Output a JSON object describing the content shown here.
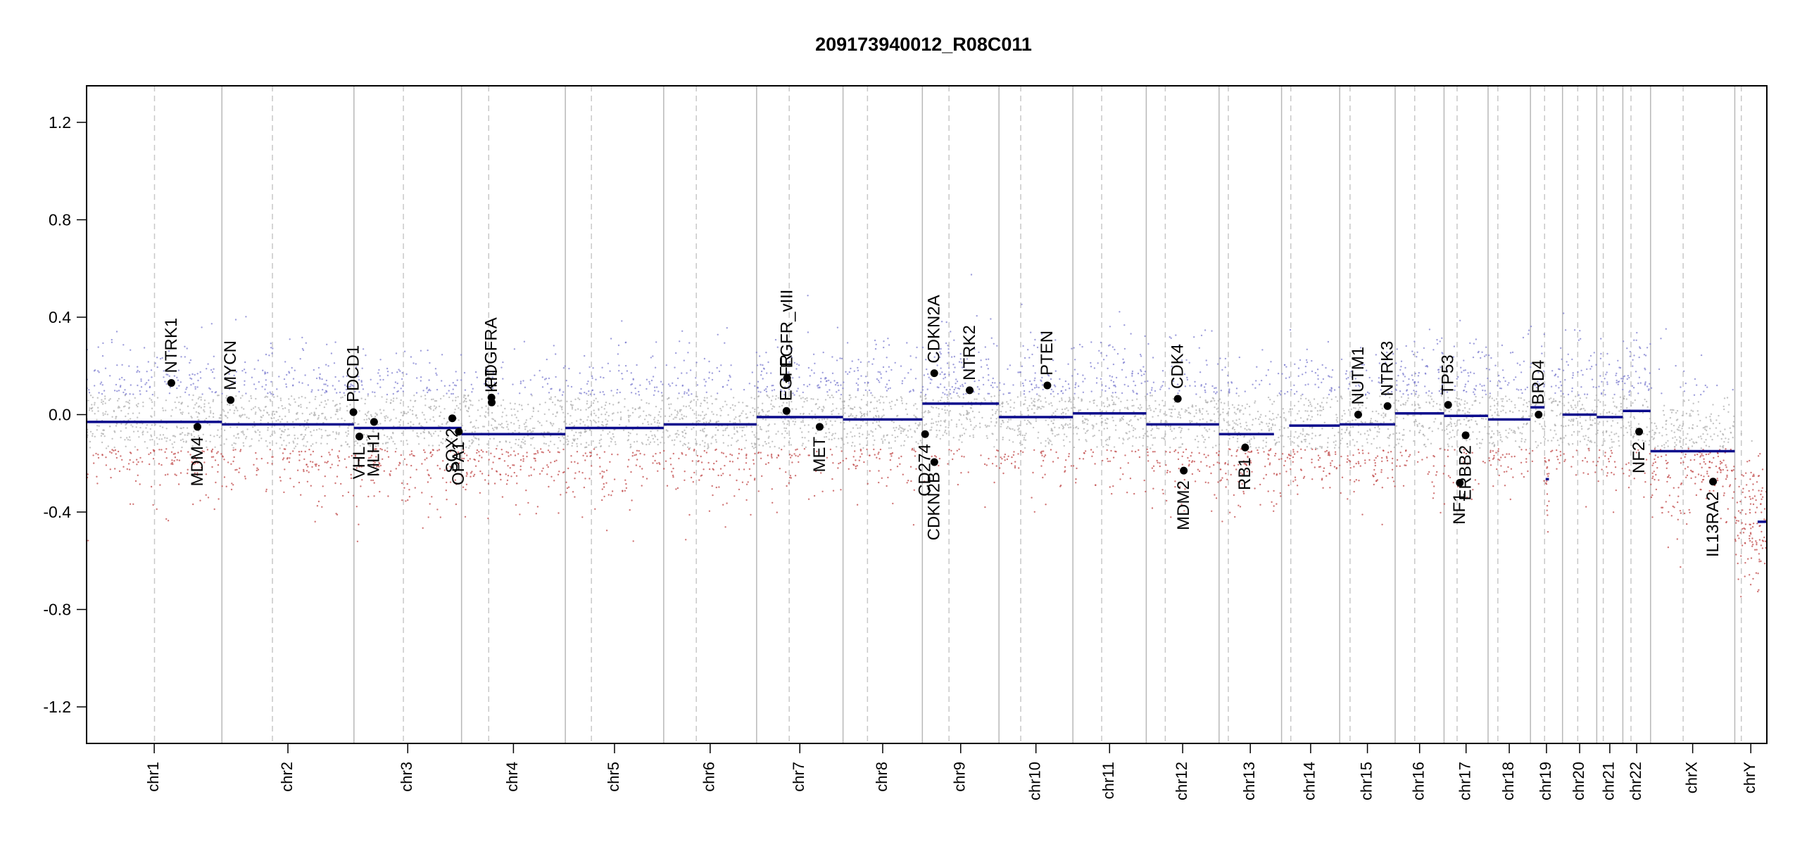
{
  "chart_data": {
    "type": "scatter",
    "title": "209173940012_R08C011",
    "xlabel": "",
    "ylabel": "",
    "ylim": [
      -1.35,
      1.35
    ],
    "yticks": [
      {
        "value": 1.2,
        "label": "1.2"
      },
      {
        "value": 0.8,
        "label": "0.8"
      },
      {
        "value": 0.4,
        "label": "0.4"
      },
      {
        "value": 0.0,
        "label": "0.0"
      },
      {
        "value": -0.4,
        "label": "-0.4"
      },
      {
        "value": -0.8,
        "label": "-0.8"
      },
      {
        "value": -1.2,
        "label": "-1.2"
      }
    ],
    "x_unit": "genome position (Mb)",
    "colors": {
      "segment": "#0a0a8c",
      "gain_points": "#7f7fd0",
      "loss_points": "#c04848",
      "neutral_points": "#b0b0b0",
      "chrom_border": "#b8b8b8",
      "centromere": "#c8c8c8",
      "gene_point": "#000000",
      "frame": "#000000"
    },
    "chromosomes": [
      {
        "name": "chr1",
        "length": 249,
        "centromere": 125
      },
      {
        "name": "chr2",
        "length": 243,
        "centromere": 93
      },
      {
        "name": "chr3",
        "length": 198,
        "centromere": 91
      },
      {
        "name": "chr4",
        "length": 191,
        "centromere": 50
      },
      {
        "name": "chr5",
        "length": 181,
        "centromere": 48
      },
      {
        "name": "chr6",
        "length": 171,
        "centromere": 60
      },
      {
        "name": "chr7",
        "length": 159,
        "centromere": 60
      },
      {
        "name": "chr8",
        "length": 146,
        "centromere": 45
      },
      {
        "name": "chr9",
        "length": 141,
        "centromere": 49
      },
      {
        "name": "chr10",
        "length": 136,
        "centromere": 40
      },
      {
        "name": "chr11",
        "length": 135,
        "centromere": 53
      },
      {
        "name": "chr12",
        "length": 134,
        "centromere": 35
      },
      {
        "name": "chr13",
        "length": 115,
        "centromere": 17
      },
      {
        "name": "chr14",
        "length": 107,
        "centromere": 17
      },
      {
        "name": "chr15",
        "length": 102,
        "centromere": 19
      },
      {
        "name": "chr16",
        "length": 90,
        "centromere": 36
      },
      {
        "name": "chr17",
        "length": 81,
        "centromere": 24
      },
      {
        "name": "chr18",
        "length": 78,
        "centromere": 18
      },
      {
        "name": "chr19",
        "length": 59,
        "centromere": 26
      },
      {
        "name": "chr20",
        "length": 63,
        "centromere": 28
      },
      {
        "name": "chr21",
        "length": 48,
        "centromere": 12
      },
      {
        "name": "chr22",
        "length": 51,
        "centromere": 15
      },
      {
        "name": "chrX",
        "length": 155,
        "centromere": 60
      },
      {
        "name": "chrY",
        "length": 59,
        "centromere": 12
      }
    ],
    "segments": [
      {
        "chrom": "chr1",
        "start": 0,
        "end": 249,
        "value": -0.03
      },
      {
        "chrom": "chr2",
        "start": 0,
        "end": 243,
        "value": -0.04
      },
      {
        "chrom": "chr3",
        "start": 0,
        "end": 198,
        "value": -0.055
      },
      {
        "chrom": "chr4",
        "start": 0,
        "end": 191,
        "value": -0.08
      },
      {
        "chrom": "chr5",
        "start": 0,
        "end": 181,
        "value": -0.055
      },
      {
        "chrom": "chr6",
        "start": 0,
        "end": 171,
        "value": -0.04
      },
      {
        "chrom": "chr7",
        "start": 0,
        "end": 159,
        "value": -0.01
      },
      {
        "chrom": "chr8",
        "start": 0,
        "end": 146,
        "value": -0.02
      },
      {
        "chrom": "chr9",
        "start": 0,
        "end": 141,
        "value": 0.045
      },
      {
        "chrom": "chr10",
        "start": 0,
        "end": 136,
        "value": -0.01
      },
      {
        "chrom": "chr11",
        "start": 0,
        "end": 135,
        "value": 0.005
      },
      {
        "chrom": "chr12",
        "start": 0,
        "end": 134,
        "value": -0.04
      },
      {
        "chrom": "chr13",
        "start": 0,
        "end": 101,
        "value": -0.08
      },
      {
        "chrom": "chr14",
        "start": 14,
        "end": 107,
        "value": -0.045
      },
      {
        "chrom": "chr15",
        "start": 0,
        "end": 102,
        "value": -0.04
      },
      {
        "chrom": "chr16",
        "start": 0,
        "end": 90,
        "value": 0.005
      },
      {
        "chrom": "chr17",
        "start": 0,
        "end": 81,
        "value": -0.005
      },
      {
        "chrom": "chr18",
        "start": 0,
        "end": 78,
        "value": -0.02
      },
      {
        "chrom": "chr19",
        "start": 0,
        "end": 26,
        "value": 0.03
      },
      {
        "chrom": "chr19",
        "start": 28,
        "end": 34,
        "value": -0.265
      },
      {
        "chrom": "chr20",
        "start": 0,
        "end": 63,
        "value": 0.0
      },
      {
        "chrom": "chr21",
        "start": 0,
        "end": 48,
        "value": -0.01
      },
      {
        "chrom": "chr22",
        "start": 0,
        "end": 51,
        "value": 0.015
      },
      {
        "chrom": "chrX",
        "start": 0,
        "end": 155,
        "value": -0.15
      },
      {
        "chrom": "chrY",
        "start": 42,
        "end": 59,
        "value": -0.44
      }
    ],
    "genes": [
      {
        "name": "NTRK1",
        "chrom": "chr1",
        "pos": 156,
        "value": 0.13,
        "label": "above"
      },
      {
        "name": "MDM4",
        "chrom": "chr1",
        "pos": 204,
        "value": -0.05,
        "label": "below"
      },
      {
        "name": "MYCN",
        "chrom": "chr2",
        "pos": 16,
        "value": 0.06,
        "label": "above"
      },
      {
        "name": "PDCD1",
        "chrom": "chr2",
        "pos": 242,
        "value": 0.01,
        "label": "above"
      },
      {
        "name": "VHL",
        "chrom": "chr3",
        "pos": 10,
        "value": -0.09,
        "label": "below"
      },
      {
        "name": "MLH1",
        "chrom": "chr3",
        "pos": 37,
        "value": -0.03,
        "label": "below"
      },
      {
        "name": "SOX2",
        "chrom": "chr3",
        "pos": 181,
        "value": -0.015,
        "label": "below"
      },
      {
        "name": "OPA1",
        "chrom": "chr3",
        "pos": 193,
        "value": -0.07,
        "label": "below"
      },
      {
        "name": "PDGFRA",
        "chrom": "chr4",
        "pos": 55,
        "value": 0.07,
        "label": "above"
      },
      {
        "name": "KIT",
        "chrom": "chr4",
        "pos": 55.5,
        "value": 0.05,
        "label": "above"
      },
      {
        "name": "EGFR",
        "chrom": "chr7",
        "pos": 55,
        "value": 0.015,
        "label": "above"
      },
      {
        "name": "EGFR_vIII",
        "chrom": "chr7",
        "pos": 56,
        "value": 0.15,
        "label": "above"
      },
      {
        "name": "MET",
        "chrom": "chr7",
        "pos": 116,
        "value": -0.05,
        "label": "below"
      },
      {
        "name": "CD274",
        "chrom": "chr9",
        "pos": 5,
        "value": -0.08,
        "label": "below"
      },
      {
        "name": "CDKN2A",
        "chrom": "chr9",
        "pos": 21.9,
        "value": 0.17,
        "label": "above"
      },
      {
        "name": "CDKN2B",
        "chrom": "chr9",
        "pos": 22,
        "value": -0.195,
        "label": "below"
      },
      {
        "name": "NTRK2",
        "chrom": "chr9",
        "pos": 87,
        "value": 0.1,
        "label": "above"
      },
      {
        "name": "PTEN",
        "chrom": "chr10",
        "pos": 89,
        "value": 0.12,
        "label": "above"
      },
      {
        "name": "CDK4",
        "chrom": "chr12",
        "pos": 58,
        "value": 0.065,
        "label": "above"
      },
      {
        "name": "MDM2",
        "chrom": "chr12",
        "pos": 69,
        "value": -0.23,
        "label": "below"
      },
      {
        "name": "RB1",
        "chrom": "chr13",
        "pos": 48,
        "value": -0.135,
        "label": "below"
      },
      {
        "name": "NUTM1",
        "chrom": "chr15",
        "pos": 34,
        "value": 0.0,
        "label": "above"
      },
      {
        "name": "NTRK3",
        "chrom": "chr15",
        "pos": 88,
        "value": 0.035,
        "label": "above"
      },
      {
        "name": "TP53",
        "chrom": "chr17",
        "pos": 7.5,
        "value": 0.04,
        "label": "above"
      },
      {
        "name": "NF1",
        "chrom": "chr17",
        "pos": 29,
        "value": -0.28,
        "label": "below"
      },
      {
        "name": "ERBB2",
        "chrom": "chr17",
        "pos": 39.7,
        "value": -0.085,
        "label": "below"
      },
      {
        "name": "BRD4",
        "chrom": "chr19",
        "pos": 15,
        "value": 0.0,
        "label": "above"
      },
      {
        "name": "NF2",
        "chrom": "chr22",
        "pos": 30,
        "value": -0.07,
        "label": "below"
      },
      {
        "name": "IL13RA2",
        "chrom": "chrX",
        "pos": 115,
        "value": -0.275,
        "label": "below"
      }
    ]
  }
}
